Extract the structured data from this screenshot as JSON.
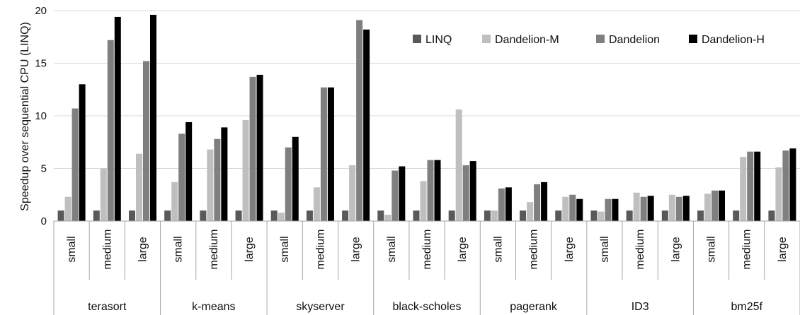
{
  "chart_data": {
    "type": "bar",
    "ylabel": "Speedup over sequential CPU (LINQ)",
    "ylim": [
      0,
      20
    ],
    "yticks": [
      0,
      5,
      10,
      15,
      20
    ],
    "grid": true,
    "legend_position": "top-right",
    "groups": [
      "terasort",
      "k-means",
      "skyserver",
      "black-scholes",
      "pagerank",
      "ID3",
      "bm25f"
    ],
    "sizes": [
      "small",
      "medium",
      "large"
    ],
    "series": [
      {
        "name": "LINQ",
        "color": "#595959",
        "values": [
          1,
          1,
          1,
          1,
          1,
          1,
          1,
          1,
          1,
          1,
          1,
          1,
          1,
          1,
          1,
          1,
          1,
          1,
          1,
          1,
          1
        ]
      },
      {
        "name": "Dandelion-M",
        "color": "#bfbfbf",
        "values": [
          2.3,
          5.0,
          6.4,
          3.7,
          6.8,
          9.6,
          0.8,
          3.2,
          5.3,
          0.6,
          3.8,
          10.6,
          1.0,
          1.8,
          2.3,
          0.9,
          2.7,
          2.5,
          2.6,
          6.1,
          5.1
        ]
      },
      {
        "name": "Dandelion",
        "color": "#7f7f7f",
        "values": [
          10.7,
          17.2,
          15.2,
          8.3,
          7.8,
          13.7,
          7.0,
          12.7,
          19.1,
          4.8,
          5.8,
          5.3,
          3.1,
          3.5,
          2.5,
          2.1,
          2.3,
          2.3,
          2.9,
          6.6,
          6.7
        ]
      },
      {
        "name": "Dandelion-H",
        "color": "#000000",
        "values": [
          13.0,
          19.4,
          19.6,
          9.4,
          8.9,
          13.9,
          8.0,
          12.7,
          18.2,
          5.2,
          5.8,
          5.7,
          3.2,
          3.7,
          2.1,
          2.1,
          2.4,
          2.4,
          2.9,
          6.6,
          6.9
        ]
      }
    ]
  }
}
